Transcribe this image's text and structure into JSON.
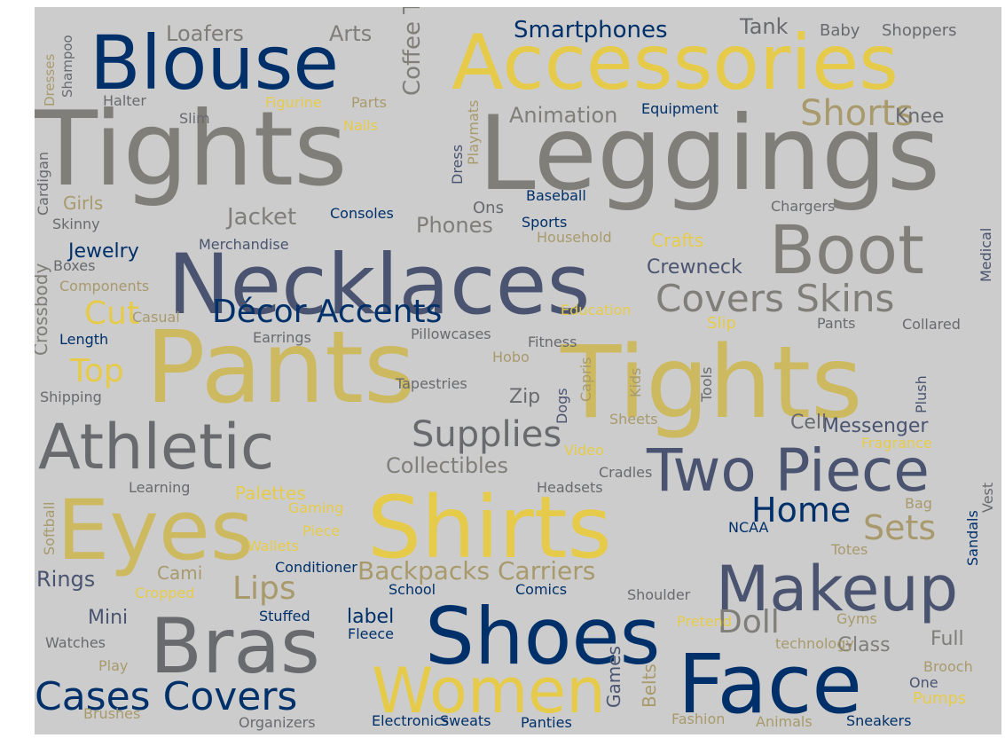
{
  "palette": {
    "background": "#cccccc",
    "navy": "#00306a",
    "slate": "#4a5470",
    "gray": "#7f7e79",
    "darkgray": "#686a6e",
    "gold": "#cdb960",
    "yellow": "#e6cb4a",
    "khaki": "#a89a6c",
    "taupe": "#8c8878"
  },
  "words": [
    {
      "text": "Tights"
    },
    {
      "text": "Leggings"
    },
    {
      "text": "Pants"
    },
    {
      "text": "Tights"
    },
    {
      "text": "Accessories"
    },
    {
      "text": "Blouse"
    },
    {
      "text": "Necklaces"
    },
    {
      "text": "Boot"
    },
    {
      "text": "Shirts"
    },
    {
      "text": "Eyes"
    },
    {
      "text": "Athletic"
    },
    {
      "text": "Shoes"
    },
    {
      "text": "Face"
    },
    {
      "text": "Bras"
    },
    {
      "text": "Makeup"
    },
    {
      "text": "Two Piece"
    },
    {
      "text": "Women"
    },
    {
      "text": "Cases Covers"
    },
    {
      "text": "Covers Skins"
    },
    {
      "text": "Décor Accents"
    },
    {
      "text": "Supplies"
    },
    {
      "text": "Home"
    },
    {
      "text": "Sets"
    },
    {
      "text": "Backpacks Carriers"
    },
    {
      "text": "Shorts"
    },
    {
      "text": "Lips"
    },
    {
      "text": "Doll"
    },
    {
      "text": "Cut"
    },
    {
      "text": "Top"
    },
    {
      "text": "Coffee Tea"
    },
    {
      "text": "Smartphones"
    },
    {
      "text": "Animation"
    },
    {
      "text": "Jacket"
    },
    {
      "text": "Phones"
    },
    {
      "text": "Crewneck"
    },
    {
      "text": "Collectibles"
    },
    {
      "text": "Messenger"
    },
    {
      "text": "Loafers"
    },
    {
      "text": "Arts"
    },
    {
      "text": "Tank"
    },
    {
      "text": "Knee"
    },
    {
      "text": "Jewelry"
    },
    {
      "text": "Crossbody"
    },
    {
      "text": "Zip"
    },
    {
      "text": "Full"
    },
    {
      "text": "Glass"
    },
    {
      "text": "Cell"
    },
    {
      "text": "Rings"
    },
    {
      "text": "Mini"
    },
    {
      "text": "Cami"
    },
    {
      "text": "label"
    },
    {
      "text": "Belts"
    },
    {
      "text": "Games"
    },
    {
      "text": "Girls"
    },
    {
      "text": "Ons"
    },
    {
      "text": "Crafts"
    },
    {
      "text": "Slip"
    },
    {
      "text": "Palettes"
    },
    {
      "text": "Baseball"
    },
    {
      "text": "Consoles"
    },
    {
      "text": "Pumps"
    },
    {
      "text": "Equipment"
    },
    {
      "text": "Baby"
    },
    {
      "text": "Shoppers"
    },
    {
      "text": "Dresses"
    },
    {
      "text": "Shampoo"
    },
    {
      "text": "Halter"
    },
    {
      "text": "Figurine"
    },
    {
      "text": "Parts"
    },
    {
      "text": "Slim"
    },
    {
      "text": "Nails"
    },
    {
      "text": "Dress"
    },
    {
      "text": "Playmats"
    },
    {
      "text": "Cardigan"
    },
    {
      "text": "Skinny"
    },
    {
      "text": "Sports"
    },
    {
      "text": "Chargers"
    },
    {
      "text": "Merchandise"
    },
    {
      "text": "Household"
    },
    {
      "text": "Medical"
    },
    {
      "text": "Boxes"
    },
    {
      "text": "Components"
    },
    {
      "text": "Casual"
    },
    {
      "text": "Education"
    },
    {
      "text": "Pants"
    },
    {
      "text": "Collared"
    },
    {
      "text": "Length"
    },
    {
      "text": "Earrings"
    },
    {
      "text": "Pillowcases"
    },
    {
      "text": "Fitness"
    },
    {
      "text": "Hobo"
    },
    {
      "text": "Plush"
    },
    {
      "text": "Shipping"
    },
    {
      "text": "Tapestries"
    },
    {
      "text": "Dogs"
    },
    {
      "text": "Capris"
    },
    {
      "text": "Kids"
    },
    {
      "text": "Tools"
    },
    {
      "text": "Sheets"
    },
    {
      "text": "Fragrance"
    },
    {
      "text": "Video"
    },
    {
      "text": "Cradles"
    },
    {
      "text": "Vest"
    },
    {
      "text": "Softball"
    },
    {
      "text": "Learning"
    },
    {
      "text": "Headsets"
    },
    {
      "text": "Gaming"
    },
    {
      "text": "Bag"
    },
    {
      "text": "Piece"
    },
    {
      "text": "Wallets"
    },
    {
      "text": "Sandals"
    },
    {
      "text": "NCAA"
    },
    {
      "text": "Totes"
    },
    {
      "text": "Conditioner"
    },
    {
      "text": "School"
    },
    {
      "text": "Comics"
    },
    {
      "text": "Cropped"
    },
    {
      "text": "Shoulder"
    },
    {
      "text": "Stuffed"
    },
    {
      "text": "Fleece"
    },
    {
      "text": "Pretend"
    },
    {
      "text": "Gyms"
    },
    {
      "text": "Watches"
    },
    {
      "text": "technology"
    },
    {
      "text": "Play"
    },
    {
      "text": "Brooch"
    },
    {
      "text": "One"
    },
    {
      "text": "Brushes"
    },
    {
      "text": "Organizers"
    },
    {
      "text": "Electronics"
    },
    {
      "text": "Sweats"
    },
    {
      "text": "Panties"
    },
    {
      "text": "Fashion"
    },
    {
      "text": "Animals"
    },
    {
      "text": "Sneakers"
    },
    {
      "text": "Tracksuits"
    }
  ]
}
